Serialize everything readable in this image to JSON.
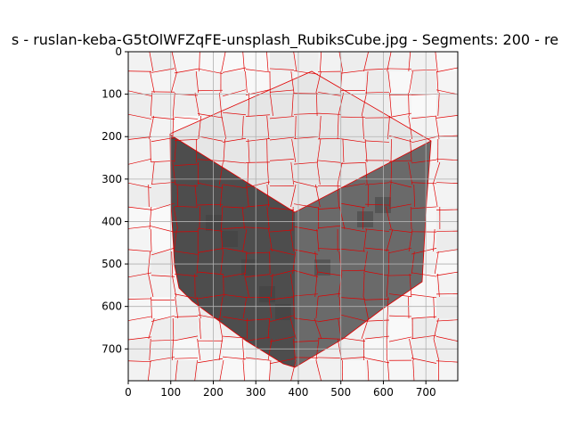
{
  "title": "s - ruslan-keba-G5tOlWFZqFE-unsplash_RubiksCube.jpg - Segments: 200 - re",
  "colors": {
    "segment_boundary": "#e00000",
    "grid": "#b0b0b0",
    "background_light": "#f2f2f2",
    "cube_top": "#e4e4e4",
    "cube_left_face": "#4a4a4a",
    "cube_right_face": "#666666",
    "frame": "#000000"
  },
  "x_axis": {
    "ticks": [
      "0",
      "100",
      "200",
      "300",
      "400",
      "500",
      "600",
      "700"
    ]
  },
  "y_axis": {
    "ticks": [
      "0",
      "100",
      "200",
      "300",
      "400",
      "500",
      "600",
      "700"
    ]
  },
  "chart_data": {
    "type": "image",
    "title": "s - ruslan-keba-G5tOlWFZqFE-unsplash_RubiksCube.jpg - Segments: 200 - re",
    "xlim": [
      0,
      775
    ],
    "ylim": [
      775,
      0
    ],
    "xticks": [
      0,
      100,
      200,
      300,
      400,
      500,
      600,
      700
    ],
    "yticks": [
      0,
      100,
      200,
      300,
      400,
      500,
      600,
      700
    ],
    "grid": true,
    "segments": 200
  }
}
